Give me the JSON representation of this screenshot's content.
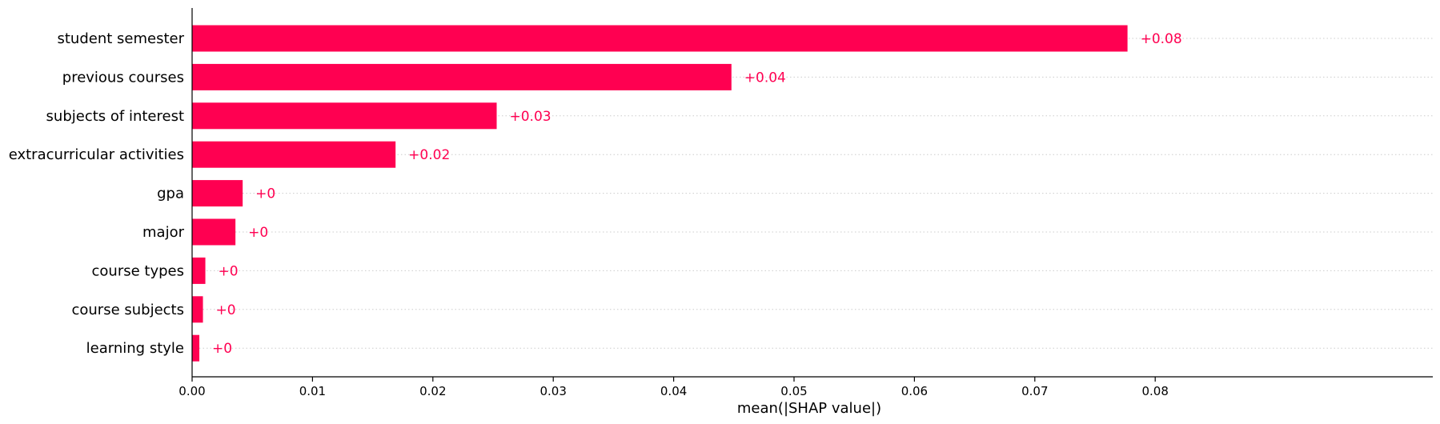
{
  "chart_data": {
    "type": "bar",
    "orientation": "horizontal",
    "categories": [
      "student semester",
      "previous courses",
      "subjects of interest",
      "extracurricular activities",
      "gpa",
      "major",
      "course types",
      "course subjects",
      "learning style"
    ],
    "values": [
      0.0777,
      0.0448,
      0.0253,
      0.0169,
      0.0042,
      0.0036,
      0.0011,
      0.0009,
      0.0006
    ],
    "data_labels": [
      "+0.08",
      "+0.04",
      "+0.03",
      "+0.02",
      "+0",
      "+0",
      "+0",
      "+0",
      "+0"
    ],
    "xticks": [
      0,
      0.01,
      0.02,
      0.03,
      0.04,
      0.05,
      0.06,
      0.07,
      0.08
    ],
    "xtick_labels": [
      "0.00",
      "0.01",
      "0.02",
      "0.03",
      "0.04",
      "0.05",
      "0.06",
      "0.07",
      "0.08"
    ],
    "xlim": [
      0,
      0.0855
    ],
    "xlabel": "mean(|SHAP value|)",
    "bar_color": "#ff0051",
    "label_color": "#ff0051",
    "gridlines": "dotted horizontal guides per category",
    "grid_color": "#cccccc"
  }
}
